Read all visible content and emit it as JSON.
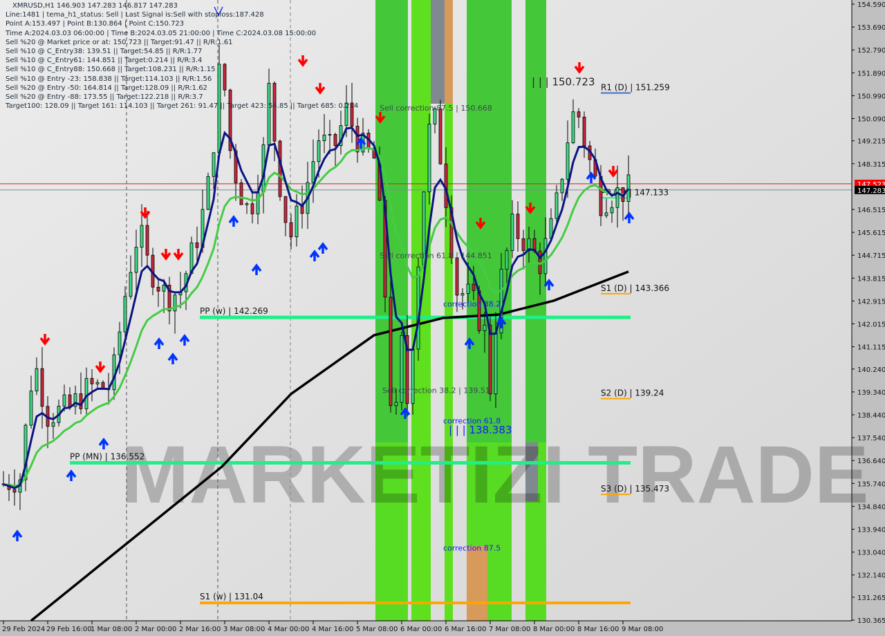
{
  "header": {
    "title": "XMRUSD,H1  146.903 147.283 146.817 147.283",
    "lines": [
      "Line:1481 | tema_h1_status: Sell | Last Signal is:Sell with stoploss:187.428",
      "Point A:153.497 | Point B:130.864 | Point C:150.723",
      "Time A:2024.03.03 06:00:00 | Time B:2024.03.05 21:00:00 | Time C:2024.03.08 15:00:00",
      "Sell %20 @ Market price or at: 150.723 || Target:91.47 || R/R:1.61",
      "Sell %10 @ C_Entry38: 139.51 || Target:54.85 || R/R:1.77",
      "Sell %10 @ C_Entry61: 144.851 || Target:0.214 || R/R:3.4",
      "Sell %10 @ C_Entry88: 150.668 || Target:108.231 || R/R:1.15",
      "Sell %10 @ Entry -23: 158.838 || Target:114.103 || R/R:1.56",
      "Sell %20 @ Entry -50: 164.814 || Target:128.09 || R/R:1.62",
      "Sell %20 @ Entry -88: 173.55 || Target:122.218 || R/R:3.7",
      "Target100: 128.09 || Target 161: 114.103 || Target 261: 91.47 || Target 423: 54.85 || Target 685: 0.214"
    ]
  },
  "watermark": "MARKETIZI TRADE",
  "colors": {
    "bull": "#3ddc84",
    "bear": "#c8283c",
    "zone_green": "#5ee01e",
    "zone_dark_green": "#44c83a",
    "ma_fast": "#0a1480",
    "ma_slow": "#44cc44",
    "ma_long": "#000000",
    "pivot": "#22ee88",
    "support_weekly": "#ffa500",
    "sell_arrow": "#ff0000",
    "buy_arrow": "#0033ff"
  },
  "chart_data": {
    "type": "candlestick",
    "symbol": "XMRUSD",
    "timeframe": "H1",
    "ylim": [
      130.365,
      154.59
    ],
    "y_ticks": [
      "154.590",
      "153.690",
      "152.790",
      "151.890",
      "150.990",
      "150.090",
      "149.215",
      "148.315",
      "146.515",
      "145.615",
      "144.715",
      "143.815",
      "142.915",
      "142.015",
      "141.115",
      "140.240",
      "139.340",
      "138.440",
      "137.540",
      "136.640",
      "135.740",
      "134.840",
      "133.940",
      "133.040",
      "132.140",
      "131.265",
      "130.365"
    ],
    "x_ticks": [
      "29 Feb 2024",
      "29 Feb 16:00",
      "1 Mar 08:00",
      "2 Mar 00:00",
      "2 Mar 16:00",
      "3 Mar 08:00",
      "4 Mar 00:00",
      "4 Mar 16:00",
      "5 Mar 08:00",
      "6 Mar 00:00",
      "6 Mar 16:00",
      "7 Mar 08:00",
      "8 Mar 00:00",
      "8 Mar 16:00",
      "9 Mar 08:00"
    ],
    "price_path": [
      [
        "2024-02-29 00:00",
        135.72
      ],
      [
        "2024-02-29 06:00",
        135.99
      ],
      [
        "2024-02-29 11:00",
        140.62
      ],
      [
        "2024-02-29 16:00",
        138.44
      ],
      [
        "2024-03-01 00:00",
        138.71
      ],
      [
        "2024-03-01 07:00",
        139.53
      ],
      [
        "2024-03-01 15:00",
        139.53
      ],
      [
        "2024-03-01 21:00",
        143.88
      ],
      [
        "2024-03-02 01:00",
        145.78
      ],
      [
        "2024-03-02 04:00",
        144.42
      ],
      [
        "2024-03-02 11:00",
        143.06
      ],
      [
        "2024-03-02 16:00",
        143.33
      ],
      [
        "2024-03-02 23:00",
        145.78
      ],
      [
        "2024-03-03 03:00",
        147.96
      ],
      [
        "2024-03-03 07:00",
        153.12
      ],
      [
        "2024-03-03 09:00",
        149.32
      ],
      [
        "2024-03-03 13:00",
        147.41
      ],
      [
        "2024-03-03 17:00",
        146.32
      ],
      [
        "2024-03-03 22:00",
        148.77
      ],
      [
        "2024-03-04 00:00",
        151.22
      ],
      [
        "2024-03-04 05:00",
        146.6
      ],
      [
        "2024-03-04 08:00",
        145.51
      ],
      [
        "2024-03-04 13:00",
        147.14
      ],
      [
        "2024-03-04 18:00",
        149.32
      ],
      [
        "2024-03-04 23:00",
        148.77
      ],
      [
        "2024-03-05 04:00",
        150.4
      ],
      [
        "2024-03-05 09:00",
        149.04
      ],
      [
        "2024-03-05 14:00",
        148.5
      ],
      [
        "2024-03-05 17:00",
        145.24
      ],
      [
        "2024-03-05 21:00",
        137.08
      ],
      [
        "2024-03-06 00:00",
        141.16
      ],
      [
        "2024-03-06 02:00",
        138.98
      ],
      [
        "2024-03-06 05:00",
        142.79
      ],
      [
        "2024-03-06 07:00",
        146.32
      ],
      [
        "2024-03-06 11:00",
        150.67
      ],
      [
        "2024-03-06 15:00",
        147.96
      ],
      [
        "2024-03-06 20:00",
        143.33
      ],
      [
        "2024-03-07 01:00",
        143.06
      ],
      [
        "2024-03-07 06:00",
        141.7
      ],
      [
        "2024-03-07 08:00",
        139.53
      ],
      [
        "2024-03-07 11:00",
        143.33
      ],
      [
        "2024-03-07 16:00",
        145.78
      ],
      [
        "2024-03-07 21:00",
        145.24
      ],
      [
        "2024-03-08 02:00",
        144.42
      ],
      [
        "2024-03-08 07:00",
        146.05
      ],
      [
        "2024-03-08 12:00",
        149.32
      ],
      [
        "2024-03-08 15:00",
        150.67
      ],
      [
        "2024-03-08 19:00",
        148.77
      ],
      [
        "2024-03-09 00:00",
        146.87
      ],
      [
        "2024-03-09 05:00",
        147.14
      ],
      [
        "2024-03-09 10:00",
        147.283
      ]
    ],
    "ma_long": [
      [
        "2024-02-29 10:00",
        130.34
      ],
      [
        "2024-03-03 07:00",
        136.4
      ],
      [
        "2024-03-04 08:00",
        139.26
      ],
      [
        "2024-03-05 14:00",
        141.57
      ],
      [
        "2024-03-06 15:00",
        142.25
      ],
      [
        "2024-03-07 11:00",
        142.38
      ],
      [
        "2024-03-08 07:00",
        142.93
      ],
      [
        "2024-03-09 10:00",
        144.07
      ]
    ],
    "current_prices": {
      "bid": "147.283",
      "ask": "147.523"
    },
    "levels": [
      {
        "label": "PP (w) | 142.269",
        "price": 142.269,
        "color": "#22ee88",
        "from": "2024-03-02 23:00"
      },
      {
        "label": "PP (MN) | 136.552",
        "price": 136.552,
        "color": "#22ee88",
        "from": "2024-03-01 00:00"
      },
      {
        "label": "S1 (w) | 131.04",
        "price": 131.04,
        "color": "#ffa500",
        "from": "2024-03-02 23:00"
      },
      {
        "label": "R1 (D) | 151.259",
        "price": 151.259,
        "color": "#3a6ed0",
        "from": "2024-03-09 00:00"
      },
      {
        "label": "PP (D) | 147.133",
        "price": 147.133,
        "color": "#22ee88",
        "from": "2024-03-09 00:00"
      },
      {
        "label": "S1 (D) | 143.366",
        "price": 143.366,
        "color": "#ffa500",
        "from": "2024-03-09 00:00"
      },
      {
        "label": "S2 (D) | 139.24",
        "price": 139.24,
        "color": "#ffa500",
        "from": "2024-03-09 00:00"
      },
      {
        "label": "S3 (D) | 135.473",
        "price": 135.473,
        "color": "#ffa500",
        "from": "2024-03-09 00:00"
      }
    ],
    "annotations": [
      {
        "text": "| | | 150.723",
        "price": 151.4,
        "time": "2024-03-07 23:00",
        "color": "#222222"
      },
      {
        "text": "| | | 138.383",
        "price": 137.7,
        "time": "2024-03-06 17:00",
        "color": "#1a1aff"
      },
      {
        "text": "Sell correction 87.5 | 150.668",
        "price": 150.4,
        "time": "2024-03-05 16:00",
        "color": "#3a4a4a"
      },
      {
        "text": "Sell correction 61.8 | 144.851",
        "price": 144.6,
        "time": "2024-03-05 16:00",
        "color": "#3a4a4a"
      },
      {
        "text": "Sell correction 38.2 | 139.51",
        "price": 139.3,
        "time": "2024-03-05 17:00",
        "color": "#3a4a4a"
      },
      {
        "text": "correction 38.2",
        "price": 142.7,
        "time": "2024-03-06 15:00",
        "color": "#1a1aff"
      },
      {
        "text": "correction 61.8",
        "price": 138.1,
        "time": "2024-03-06 15:00",
        "color": "#1a1aff"
      },
      {
        "text": "correction 87.5",
        "price": 133.1,
        "time": "2024-03-06 15:00",
        "color": "#1a1aff"
      }
    ]
  }
}
